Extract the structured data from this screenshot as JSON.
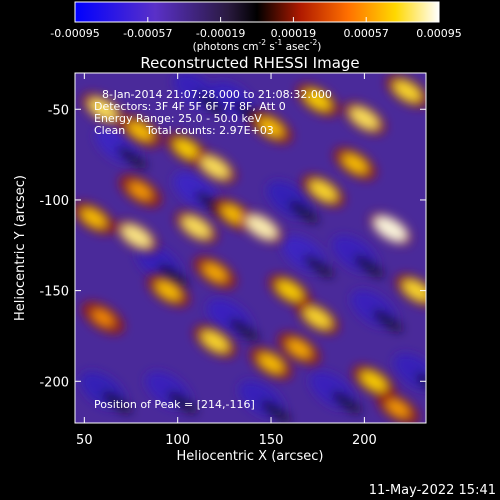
{
  "colorbar": {
    "ticks": [
      "-0.00095",
      "-0.00057",
      "-0.00019",
      "0.00019",
      "0.00057",
      "0.00095"
    ],
    "units": [
      "(photons cm",
      "-2",
      " s",
      "-1",
      " asec",
      "-2",
      ")"
    ]
  },
  "annotations": {
    "time_range": "8-Jan-2014 21:07:28.000 to 21:08:32.000",
    "detectors": "Detectors: 3F 4F 5F 6F 7F 8F, Att 0",
    "energy": "Energy Range: 25.0 - 50.0 keV",
    "clean": "Clean",
    "counts": "Total counts: 2.97E+03",
    "peak": "Position of Peak = [214,-116]"
  },
  "footer": {
    "timestamp": "11-May-2022 15:41"
  },
  "chart_data": {
    "type": "heatmap",
    "title": "Reconstructed RHESSI Image",
    "xlabel": "Heliocentric X (arcsec)",
    "ylabel": "Heliocentric Y (arcsec)",
    "xlim": [
      45,
      233
    ],
    "ylim": [
      -223,
      -30
    ],
    "x_ticks": [
      50,
      100,
      150,
      200
    ],
    "y_ticks": [
      -50,
      -100,
      -150,
      -200
    ],
    "colorbar_range": [
      -0.00095,
      0.00095
    ],
    "colormap": [
      "#0000ff",
      "#5a30c8",
      "#2a1a40",
      "#000000",
      "#b01a00",
      "#ff7000",
      "#ffd800",
      "#ffffff"
    ],
    "peak": [
      214,
      -116
    ],
    "bright_features": [
      {
        "x": 60,
        "y": -50,
        "intensity": 0.85
      },
      {
        "x": 80,
        "y": -62,
        "intensity": 0.7
      },
      {
        "x": 105,
        "y": -72,
        "intensity": 0.75
      },
      {
        "x": 120,
        "y": -82,
        "intensity": 0.85
      },
      {
        "x": 150,
        "y": -60,
        "intensity": 0.7
      },
      {
        "x": 175,
        "y": -45,
        "intensity": 0.75
      },
      {
        "x": 200,
        "y": -55,
        "intensity": 0.85
      },
      {
        "x": 223,
        "y": -40,
        "intensity": 0.8
      },
      {
        "x": 55,
        "y": -110,
        "intensity": 0.7
      },
      {
        "x": 78,
        "y": -120,
        "intensity": 0.9
      },
      {
        "x": 110,
        "y": -115,
        "intensity": 0.85
      },
      {
        "x": 130,
        "y": -108,
        "intensity": 0.7
      },
      {
        "x": 145,
        "y": -115,
        "intensity": 0.95
      },
      {
        "x": 178,
        "y": -95,
        "intensity": 0.8
      },
      {
        "x": 195,
        "y": -80,
        "intensity": 0.7
      },
      {
        "x": 214,
        "y": -116,
        "intensity": 1.0
      },
      {
        "x": 228,
        "y": -150,
        "intensity": 0.8
      },
      {
        "x": 95,
        "y": -150,
        "intensity": 0.7
      },
      {
        "x": 120,
        "y": -140,
        "intensity": 0.65
      },
      {
        "x": 160,
        "y": -150,
        "intensity": 0.75
      },
      {
        "x": 175,
        "y": -165,
        "intensity": 0.8
      },
      {
        "x": 120,
        "y": -178,
        "intensity": 0.8
      },
      {
        "x": 150,
        "y": -190,
        "intensity": 0.7
      },
      {
        "x": 165,
        "y": -182,
        "intensity": 0.65
      },
      {
        "x": 205,
        "y": -200,
        "intensity": 0.75
      },
      {
        "x": 218,
        "y": -215,
        "intensity": 0.6
      },
      {
        "x": 60,
        "y": -165,
        "intensity": 0.55
      },
      {
        "x": 80,
        "y": -95,
        "intensity": 0.6
      }
    ],
    "dim_features": [
      {
        "x": 68,
        "y": -70,
        "intensity": 0.45
      },
      {
        "x": 110,
        "y": -95,
        "intensity": 0.5
      },
      {
        "x": 90,
        "y": -135,
        "intensity": 0.3
      },
      {
        "x": 128,
        "y": -165,
        "intensity": 0.4
      },
      {
        "x": 168,
        "y": -130,
        "intensity": 0.45
      },
      {
        "x": 195,
        "y": -130,
        "intensity": 0.35
      },
      {
        "x": 160,
        "y": -100,
        "intensity": 0.25
      },
      {
        "x": 205,
        "y": -160,
        "intensity": 0.35
      },
      {
        "x": 228,
        "y": -195,
        "intensity": 0.3
      },
      {
        "x": 60,
        "y": -205,
        "intensity": 0.25
      },
      {
        "x": 145,
        "y": -210,
        "intensity": 0.3
      },
      {
        "x": 130,
        "y": -45,
        "intensity": 0.3
      },
      {
        "x": 95,
        "y": -205,
        "intensity": 0.35
      },
      {
        "x": 110,
        "y": -40,
        "intensity": 0.3
      },
      {
        "x": 183,
        "y": -205,
        "intensity": 0.35
      }
    ]
  }
}
